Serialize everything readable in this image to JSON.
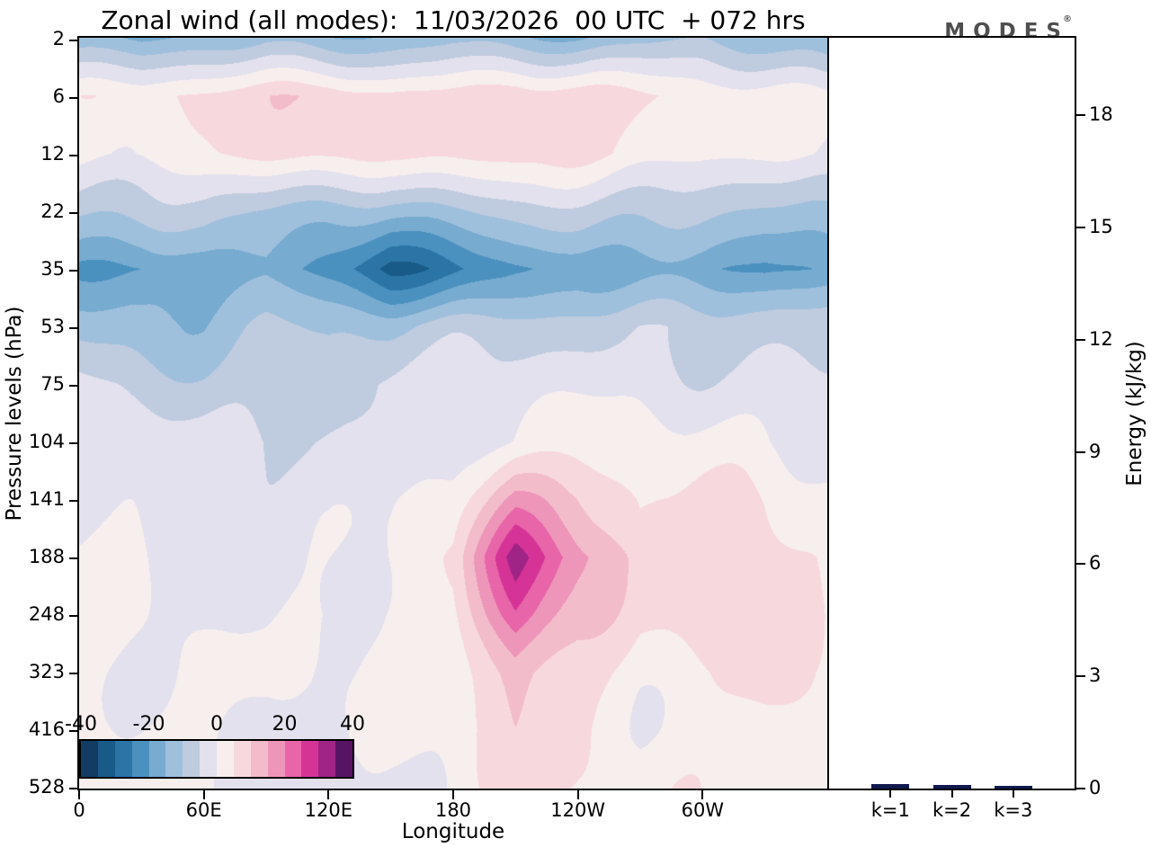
{
  "title": "Zonal wind (all modes):  11/03/2026  00 UTC  + 072 hrs",
  "logo": {
    "text": "MODES",
    "mark": "®"
  },
  "chart_data": [
    {
      "type": "heatmap",
      "title": "Zonal wind (all modes): 11/03/2026 00 UTC + 072 hrs",
      "xlabel": "Longitude",
      "ylabel": "Pressure levels (hPa)",
      "x_range": [
        0,
        360
      ],
      "x_ticks": {
        "values": [
          0,
          60,
          120,
          180,
          240,
          300
        ],
        "labels": [
          "0",
          "60E",
          "120E",
          "180",
          "120W",
          "60W"
        ]
      },
      "y_tick_labels": [
        "2",
        "6",
        "12",
        "22",
        "35",
        "53",
        "75",
        "104",
        "141",
        "188",
        "248",
        "323",
        "416",
        "528"
      ],
      "colorbar": {
        "min": -40,
        "max": 40,
        "step": 5,
        "tick_labels": [
          "-40",
          "-20",
          "0",
          "20",
          "40"
        ],
        "colors": [
          "#123c63",
          "#185a88",
          "#2a75a5",
          "#4b91bf",
          "#77abd0",
          "#9fc0dc",
          "#bfcbdf",
          "#e3e1ed",
          "#f7eeee",
          "#f7d9dd",
          "#f3bcca",
          "#ee96ba",
          "#e765a8",
          "#d63397",
          "#a02486",
          "#571465"
        ]
      },
      "grid": {
        "lon": [
          0,
          30,
          60,
          90,
          120,
          150,
          180,
          210,
          240,
          270,
          300,
          330,
          360
        ],
        "pressure": [
          2,
          6,
          12,
          22,
          35,
          53,
          75,
          104,
          141,
          188,
          248,
          323,
          416,
          528
        ],
        "values": [
          [
            -15,
            -17,
            -13,
            -11,
            -14,
            -13,
            -12,
            -15,
            -16,
            -13,
            -10,
            -12,
            -15
          ],
          [
            2,
            3,
            5,
            8,
            11,
            7,
            8,
            10,
            7,
            5,
            3,
            2,
            2
          ],
          [
            1,
            2,
            4,
            7,
            8,
            5,
            6,
            8,
            6,
            4,
            2,
            1,
            1
          ],
          [
            -9,
            -8,
            -7,
            -9,
            -12,
            -13,
            -11,
            -9,
            -8,
            -8,
            -9,
            -10,
            -9
          ],
          [
            -20,
            -22,
            -18,
            -17,
            -24,
            -31,
            -26,
            -20,
            -17,
            -18,
            -20,
            -22,
            -20
          ],
          [
            -10,
            -12,
            -13,
            -11,
            -13,
            -12,
            -8,
            -6,
            -5,
            -5,
            -6,
            -8,
            -9
          ],
          [
            -4,
            -6,
            -8,
            -7,
            -6,
            -4,
            -3,
            -2,
            -2,
            -2,
            -3,
            -3,
            -4
          ],
          [
            -2,
            -3,
            -4,
            -4,
            -3,
            -2,
            0,
            0,
            1,
            1,
            1,
            0,
            -1
          ],
          [
            0,
            -1,
            -2,
            -3,
            -2,
            0,
            3,
            16,
            11,
            5,
            6,
            6,
            1
          ],
          [
            1,
            0,
            -1,
            -2,
            -1,
            1,
            5,
            31,
            18,
            7,
            9,
            11,
            3
          ],
          [
            1,
            1,
            -1,
            -2,
            0,
            1,
            4,
            25,
            13,
            5,
            7,
            9,
            3
          ],
          [
            2,
            1,
            0,
            -1,
            -1,
            0,
            3,
            15,
            8,
            3,
            4,
            5,
            2
          ],
          [
            3,
            2,
            1,
            -1,
            -1,
            0,
            2,
            9,
            5,
            2,
            3,
            3,
            3
          ],
          [
            3,
            2,
            1,
            0,
            -1,
            0,
            2,
            6,
            3,
            2,
            3,
            4,
            3
          ]
        ]
      }
    },
    {
      "type": "bar",
      "categories": [
        "k=1",
        "k=2",
        "k=3"
      ],
      "values": [
        0.12,
        0.1,
        0.08
      ],
      "ylabel": "Energy (kJ/kg)",
      "ylim": [
        0,
        20
      ],
      "y_ticks": [
        0,
        3,
        6,
        9,
        12,
        15,
        18
      ],
      "bar_color": "#10194f",
      "legend": "none",
      "grid_lines": "off"
    }
  ]
}
